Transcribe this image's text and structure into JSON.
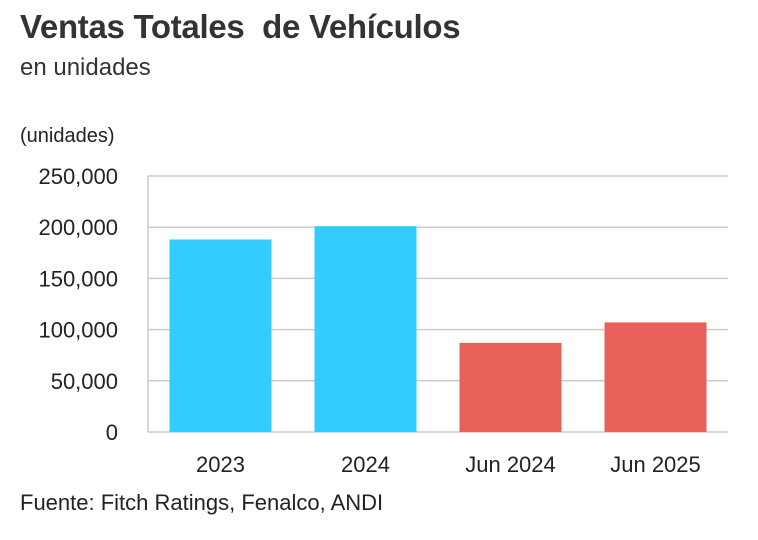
{
  "header": {
    "title": "Ventas Totales  de Vehículos",
    "subtitle": "en unidades"
  },
  "footer": {
    "source": "Fuente: Fitch Ratings, Fenalco, ANDI"
  },
  "chart_data": {
    "type": "bar",
    "title": "Ventas Totales  de Vehículos",
    "subtitle": "en unidades",
    "ylabel": "(unidades)",
    "xlabel": "",
    "categories": [
      "2023",
      "2024",
      "Jun 2024",
      "Jun 2025"
    ],
    "values": [
      188000,
      201000,
      87000,
      107000
    ],
    "colors": [
      "#33CCFF",
      "#33CCFF",
      "#E8605A",
      "#E8605A"
    ],
    "ylim": [
      0,
      250000
    ],
    "yticks": [
      0,
      50000,
      100000,
      150000,
      200000,
      250000
    ],
    "ytick_labels": [
      "0",
      "50,000",
      "100,000",
      "150,000",
      "200,000",
      "250,000"
    ],
    "grid": true,
    "legend": "none"
  },
  "colors": {
    "annual": "#33CCFF",
    "semester": "#E8605A",
    "grid": "#cccccc"
  }
}
